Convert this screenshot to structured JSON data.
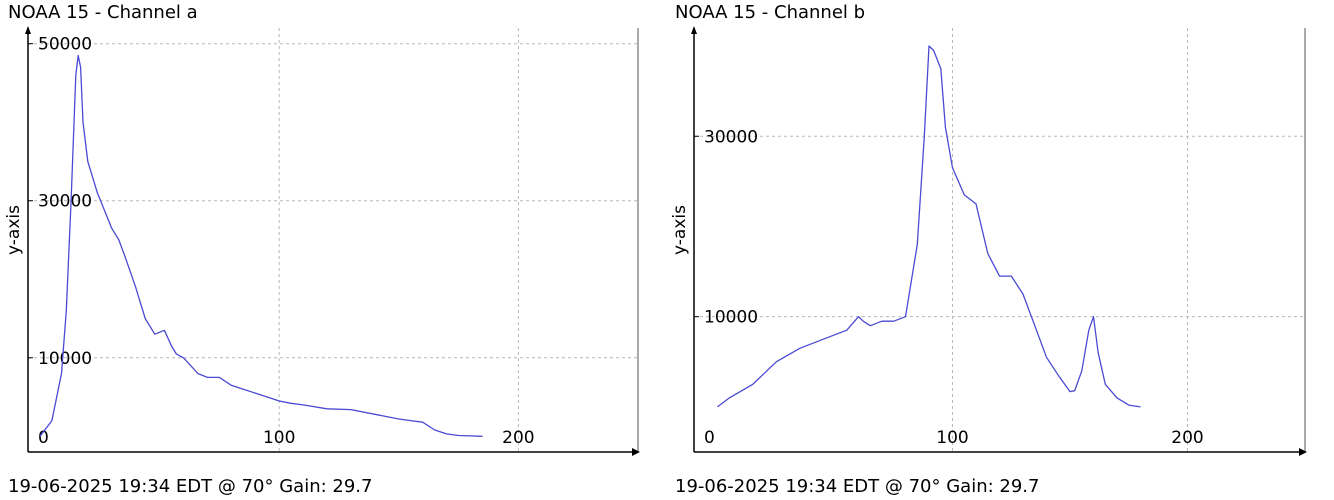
{
  "colors": {
    "line": "#4a4ad4",
    "grid": "#b8b8b8",
    "axis": "#000000",
    "background": "#ffffff"
  },
  "chart_data": [
    {
      "type": "line",
      "title": "NOAA 15 - Channel a",
      "ylabel": "y-axis",
      "xlabel": "",
      "footer": "19-06-2025 19:34 EDT @ 70° Gain: 29.7",
      "xlim": [
        -5,
        250
      ],
      "ylim": [
        -2000,
        52000
      ],
      "x_ticks": [
        0,
        100,
        200
      ],
      "y_ticks": [
        10000,
        30000,
        50000
      ],
      "grid": true,
      "series": [
        {
          "x": [
            0,
            5,
            9,
            11,
            13,
            15,
            16,
            17,
            18,
            20,
            22,
            24,
            26,
            28,
            30,
            33,
            36,
            40,
            44,
            48,
            52,
            55,
            57,
            60,
            63,
            66,
            70,
            75,
            80,
            85,
            90,
            95,
            100,
            105,
            110,
            120,
            130,
            140,
            150,
            155,
            160,
            165,
            170,
            175,
            180,
            185
          ],
          "y": [
            0,
            2000,
            8000,
            16000,
            30000,
            46000,
            48500,
            47000,
            40000,
            35000,
            33000,
            31000,
            29500,
            28000,
            26500,
            25000,
            22500,
            19000,
            15000,
            13000,
            13500,
            11500,
            10500,
            10000,
            9000,
            8000,
            7500,
            7500,
            6500,
            6000,
            5500,
            5000,
            4500,
            4200,
            4000,
            3500,
            3400,
            2800,
            2200,
            2000,
            1800,
            800,
            300,
            100,
            50,
            0
          ]
        }
      ]
    },
    {
      "type": "line",
      "title": "NOAA 15 - Channel b",
      "ylabel": "y-axis",
      "xlabel": "",
      "footer": "19-06-2025 19:34 EDT @ 70° Gain: 29.7",
      "xlim": [
        -10,
        250
      ],
      "ylim": [
        -5000,
        42000
      ],
      "x_ticks": [
        0,
        100,
        200
      ],
      "y_ticks": [
        10000,
        30000
      ],
      "grid": true,
      "series": [
        {
          "x": [
            0,
            5,
            15,
            25,
            35,
            45,
            55,
            60,
            62,
            65,
            70,
            75,
            80,
            85,
            88,
            90,
            92,
            95,
            97,
            100,
            105,
            110,
            115,
            120,
            125,
            130,
            135,
            140,
            145,
            150,
            152,
            155,
            158,
            160,
            162,
            165,
            170,
            175,
            180
          ],
          "y": [
            0,
            1000,
            2500,
            5000,
            6500,
            7500,
            8500,
            10000,
            9500,
            9000,
            9500,
            9500,
            10000,
            18000,
            30000,
            40000,
            39500,
            37500,
            31000,
            26500,
            23500,
            22500,
            17000,
            14500,
            14500,
            12500,
            9000,
            5500,
            3500,
            1700,
            1800,
            4000,
            8500,
            10000,
            6000,
            2500,
            1000,
            200,
            0
          ]
        }
      ]
    }
  ]
}
